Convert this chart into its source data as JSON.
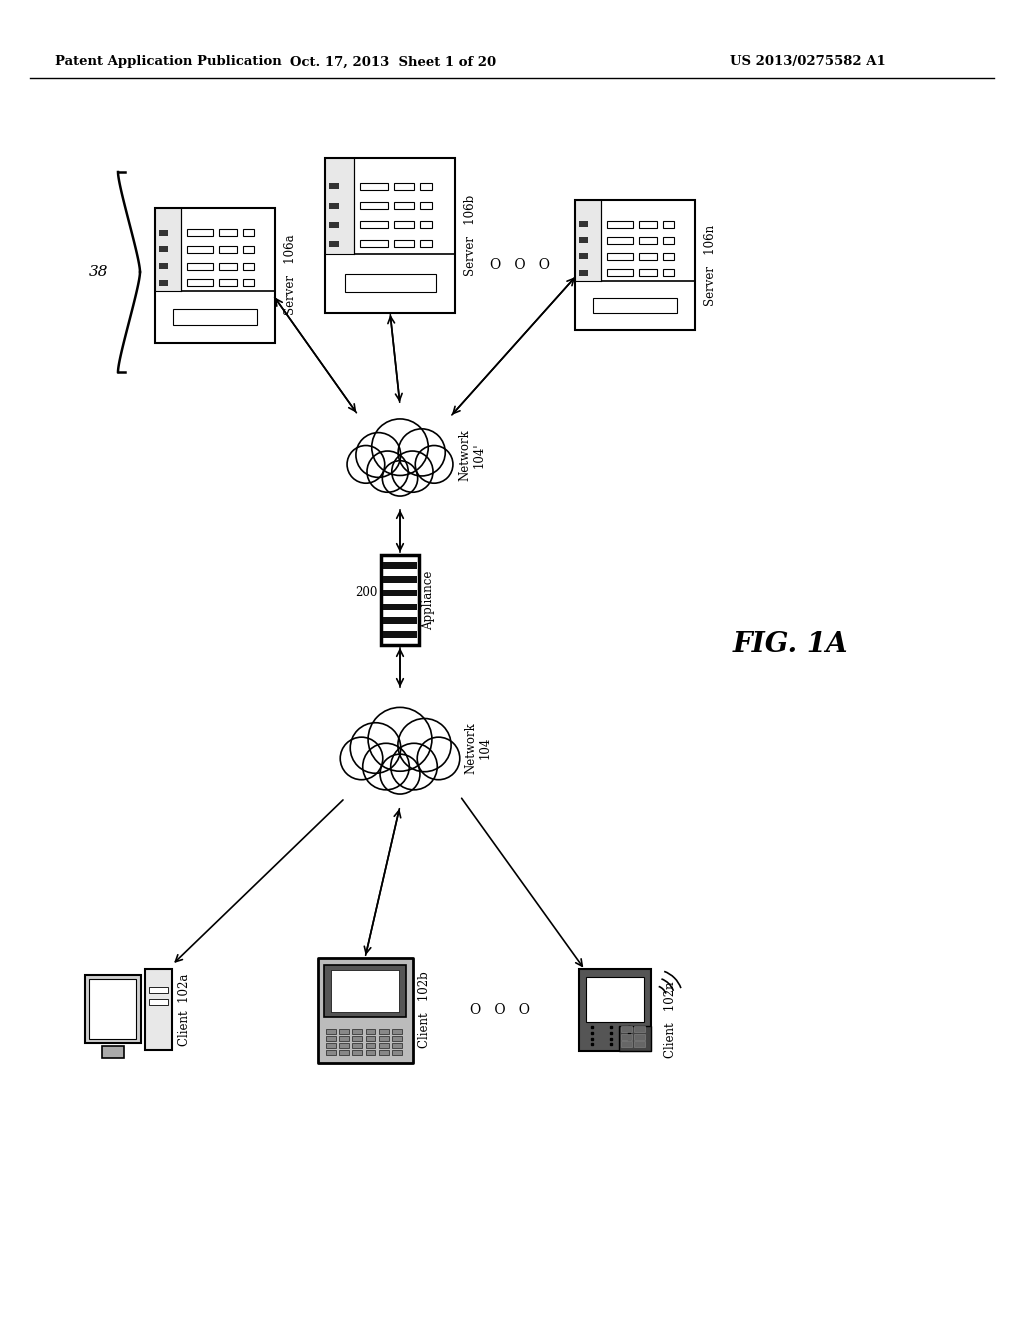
{
  "bg_color": "#ffffff",
  "header_left": "Patent Application Publication",
  "header_mid": "Oct. 17, 2013  Sheet 1 of 20",
  "header_right": "US 2013/0275582 A1",
  "fig_label": "FIG. 1A",
  "label_38": "38",
  "server_106a_label": "Server   106a",
  "server_106b_label": "Server   106b",
  "server_106n_label": "Server   106n",
  "client_102a_label": "Client  102a",
  "client_102b_label": "Client   102b",
  "client_102n_label": "Client   102n",
  "network1_label": "Network\n104'",
  "network2_label": "Network\n104",
  "appliance_num": "200",
  "appliance_str": "Appliance",
  "ellipsis": "O   O   O"
}
